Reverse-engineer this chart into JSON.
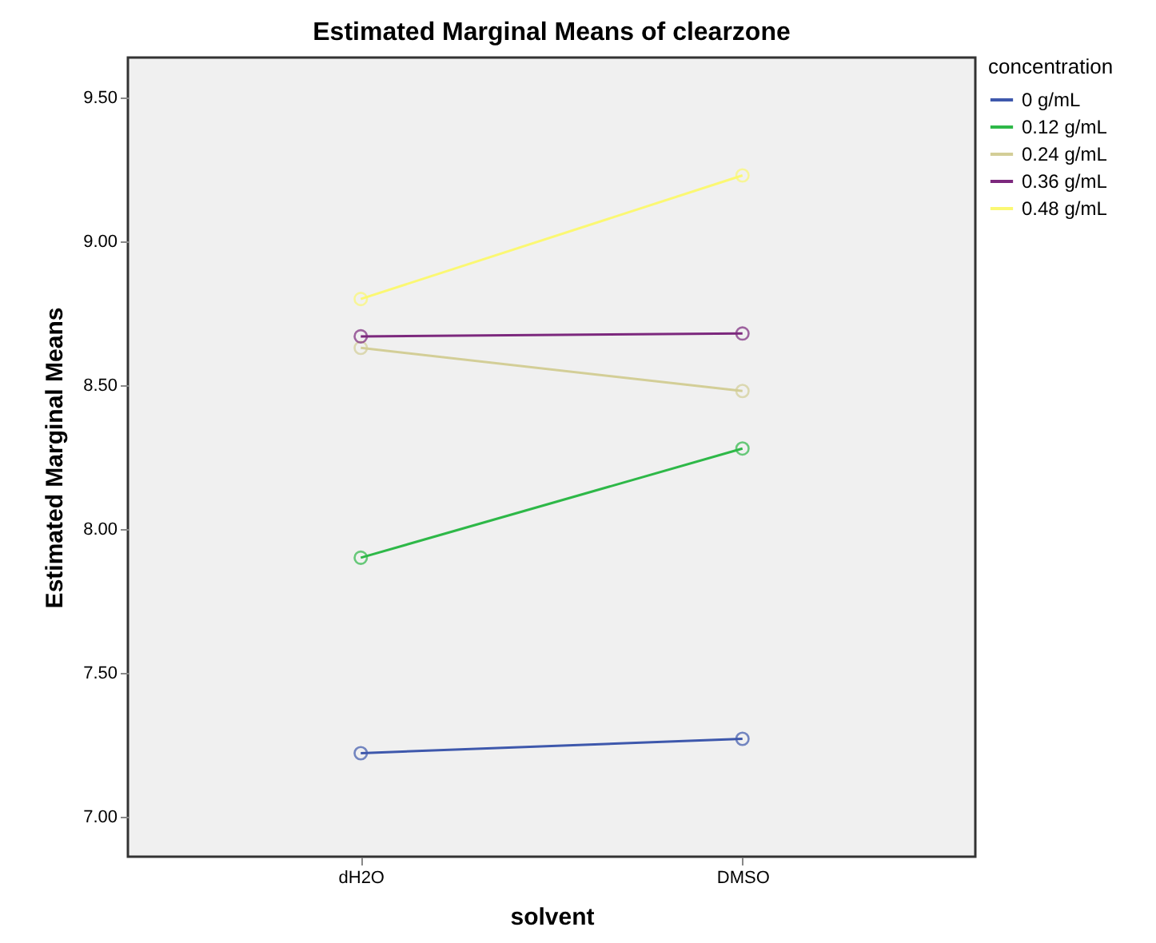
{
  "chart_data": {
    "type": "line",
    "title": "Estimated Marginal Means of clearzone",
    "xlabel": "solvent",
    "ylabel": "Estimated Marginal Means",
    "legend_title": "concentration",
    "categories": [
      "dH2O",
      "DMSO"
    ],
    "series": [
      {
        "name": "0 g/mL",
        "color": "#3e58ac",
        "values": [
          7.22,
          7.27
        ]
      },
      {
        "name": "0.12 g/mL",
        "color": "#2eb848",
        "values": [
          7.9,
          8.28
        ]
      },
      {
        "name": "0.24 g/mL",
        "color": "#d3ce97",
        "values": [
          8.63,
          8.48
        ]
      },
      {
        "name": "0.36 g/mL",
        "color": "#7c287d",
        "values": [
          8.67,
          8.68
        ]
      },
      {
        "name": "0.48 g/mL",
        "color": "#fbf873",
        "values": [
          8.8,
          9.23
        ]
      }
    ],
    "ylim": [
      6.86,
      9.64
    ],
    "yticks": [
      {
        "value": 7,
        "label": "7.00"
      },
      {
        "value": 7.5,
        "label": "7.50"
      },
      {
        "value": 8,
        "label": "8.00"
      },
      {
        "value": 8.5,
        "label": "8.50"
      },
      {
        "value": 9,
        "label": "9.00"
      },
      {
        "value": 9.5,
        "label": "9.50"
      }
    ],
    "grid": false,
    "legend": "top right",
    "marker": "circle",
    "line_style": "solid"
  }
}
